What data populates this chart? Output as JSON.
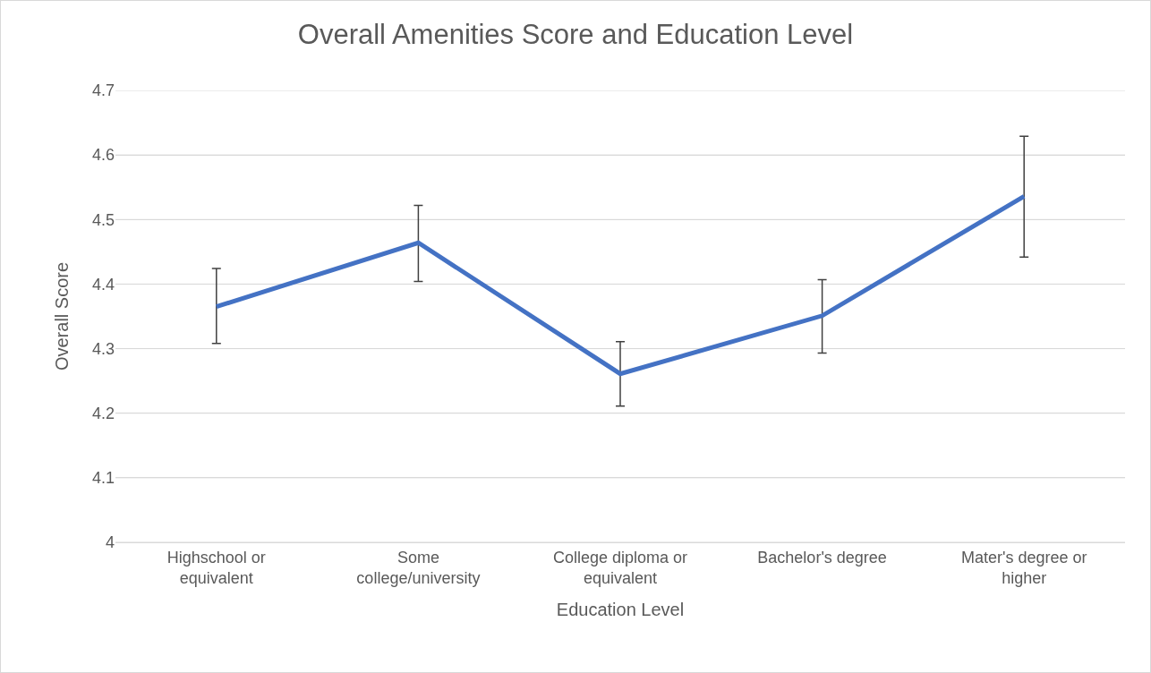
{
  "chart_data": {
    "type": "line",
    "title": "Overall Amenities Score and Education Level",
    "xlabel": "Education Level",
    "ylabel": "Overall Score",
    "categories": [
      "Highschool or equivalent",
      "Some college/university",
      "College diploma or equivalent",
      "Bachelor's degree",
      "Mater's degree or higher"
    ],
    "series": [
      {
        "color": "#4472c4",
        "values": [
          4.365,
          4.464,
          4.261,
          4.351,
          4.536
        ],
        "errors": [
          [
            4.308,
            4.424
          ],
          [
            4.404,
            4.522
          ],
          [
            4.211,
            4.311
          ],
          [
            4.293,
            4.407
          ],
          [
            4.442,
            4.629
          ]
        ]
      }
    ],
    "ylim": [
      4,
      4.7
    ],
    "yticks": [
      4,
      4.1,
      4.2,
      4.3,
      4.4,
      4.5,
      4.6,
      4.7
    ],
    "grid": "y",
    "marker": "none",
    "line_style": "solid"
  }
}
